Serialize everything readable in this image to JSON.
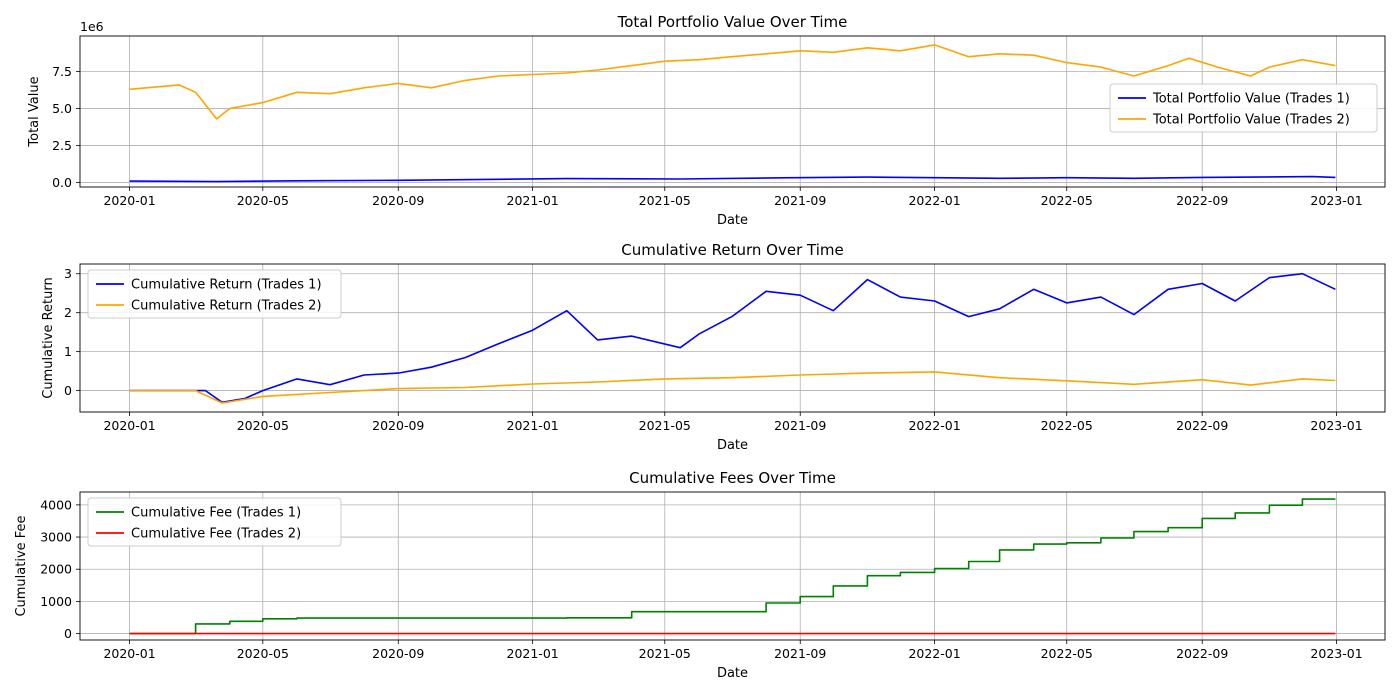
{
  "chart_data": [
    {
      "type": "line",
      "title": "Total Portfolio Value Over Time",
      "xlabel": "Date",
      "ylabel": "Total Value",
      "y_offset_text": "1e6",
      "ylim": [
        -0.3,
        9.9
      ],
      "y_ticks": [
        0,
        2.5,
        5,
        7.5
      ],
      "y_tick_labels": [
        "0.0",
        "2.5",
        "5.0",
        "7.5"
      ],
      "grid": true,
      "legend_position": "center-right",
      "series": [
        {
          "name": "Total Portfolio Value (Trades 1)",
          "color": "#0000ff",
          "points": [
            [
              "2020-01-01",
              0.1
            ],
            [
              "2020-03-20",
              0.07
            ],
            [
              "2020-06-01",
              0.12
            ],
            [
              "2020-09-01",
              0.15
            ],
            [
              "2020-12-01",
              0.22
            ],
            [
              "2021-02-01",
              0.27
            ],
            [
              "2021-05-15",
              0.24
            ],
            [
              "2021-08-15",
              0.32
            ],
            [
              "2021-11-01",
              0.37
            ],
            [
              "2022-01-01",
              0.33
            ],
            [
              "2022-03-01",
              0.29
            ],
            [
              "2022-05-01",
              0.33
            ],
            [
              "2022-07-01",
              0.29
            ],
            [
              "2022-09-01",
              0.35
            ],
            [
              "2022-12-10",
              0.4
            ],
            [
              "2022-12-31",
              0.35
            ]
          ]
        },
        {
          "name": "Total Portfolio Value (Trades 2)",
          "color": "#ffa500",
          "points": [
            [
              "2020-01-01",
              6.3
            ],
            [
              "2020-02-15",
              6.6
            ],
            [
              "2020-03-01",
              6.1
            ],
            [
              "2020-03-20",
              4.3
            ],
            [
              "2020-04-01",
              5.0
            ],
            [
              "2020-05-01",
              5.4
            ],
            [
              "2020-06-01",
              6.1
            ],
            [
              "2020-07-01",
              6.0
            ],
            [
              "2020-08-01",
              6.4
            ],
            [
              "2020-09-01",
              6.7
            ],
            [
              "2020-10-01",
              6.4
            ],
            [
              "2020-11-01",
              6.9
            ],
            [
              "2020-12-01",
              7.2
            ],
            [
              "2021-01-01",
              7.3
            ],
            [
              "2021-02-01",
              7.4
            ],
            [
              "2021-03-01",
              7.6
            ],
            [
              "2021-04-01",
              7.9
            ],
            [
              "2021-05-01",
              8.2
            ],
            [
              "2021-06-01",
              8.3
            ],
            [
              "2021-07-01",
              8.5
            ],
            [
              "2021-08-01",
              8.7
            ],
            [
              "2021-09-01",
              8.9
            ],
            [
              "2021-10-01",
              8.8
            ],
            [
              "2021-11-01",
              9.1
            ],
            [
              "2021-12-01",
              8.9
            ],
            [
              "2022-01-01",
              9.3
            ],
            [
              "2022-02-01",
              8.5
            ],
            [
              "2022-03-01",
              8.7
            ],
            [
              "2022-04-01",
              8.6
            ],
            [
              "2022-05-01",
              8.1
            ],
            [
              "2022-06-01",
              7.8
            ],
            [
              "2022-07-01",
              7.2
            ],
            [
              "2022-08-01",
              7.9
            ],
            [
              "2022-08-20",
              8.4
            ],
            [
              "2022-09-15",
              7.8
            ],
            [
              "2022-10-15",
              7.2
            ],
            [
              "2022-11-01",
              7.8
            ],
            [
              "2022-12-01",
              8.3
            ],
            [
              "2022-12-31",
              7.9
            ]
          ]
        }
      ],
      "x_ticks": [
        "2020-01",
        "2020-05",
        "2020-09",
        "2021-01",
        "2021-05",
        "2021-09",
        "2022-01",
        "2022-05",
        "2022-09",
        "2023-01"
      ]
    },
    {
      "type": "line",
      "title": "Cumulative Return Over Time",
      "xlabel": "Date",
      "ylabel": "Cumulative Return",
      "ylim": [
        -0.55,
        3.25
      ],
      "y_ticks": [
        0,
        1,
        2,
        3
      ],
      "y_tick_labels": [
        "0",
        "1",
        "2",
        "3"
      ],
      "grid": true,
      "legend_position": "upper-left",
      "series": [
        {
          "name": "Cumulative Return (Trades 1)",
          "color": "#0000ff",
          "points": [
            [
              "2020-01-01",
              0.0
            ],
            [
              "2020-03-10",
              0.0
            ],
            [
              "2020-03-25",
              -0.3
            ],
            [
              "2020-04-15",
              -0.2
            ],
            [
              "2020-05-01",
              0.0
            ],
            [
              "2020-06-01",
              0.3
            ],
            [
              "2020-07-01",
              0.15
            ],
            [
              "2020-08-01",
              0.4
            ],
            [
              "2020-09-01",
              0.45
            ],
            [
              "2020-10-01",
              0.6
            ],
            [
              "2020-11-01",
              0.85
            ],
            [
              "2020-12-01",
              1.2
            ],
            [
              "2021-01-01",
              1.55
            ],
            [
              "2021-02-01",
              2.05
            ],
            [
              "2021-03-01",
              1.3
            ],
            [
              "2021-04-01",
              1.4
            ],
            [
              "2021-05-15",
              1.1
            ],
            [
              "2021-06-01",
              1.45
            ],
            [
              "2021-07-01",
              1.9
            ],
            [
              "2021-08-01",
              2.55
            ],
            [
              "2021-09-01",
              2.45
            ],
            [
              "2021-10-01",
              2.05
            ],
            [
              "2021-11-01",
              2.85
            ],
            [
              "2021-12-01",
              2.4
            ],
            [
              "2022-01-01",
              2.3
            ],
            [
              "2022-02-01",
              1.9
            ],
            [
              "2022-03-01",
              2.1
            ],
            [
              "2022-04-01",
              2.6
            ],
            [
              "2022-05-01",
              2.25
            ],
            [
              "2022-06-01",
              2.4
            ],
            [
              "2022-07-01",
              1.95
            ],
            [
              "2022-08-01",
              2.6
            ],
            [
              "2022-09-01",
              2.75
            ],
            [
              "2022-10-01",
              2.3
            ],
            [
              "2022-11-01",
              2.9
            ],
            [
              "2022-12-01",
              3.0
            ],
            [
              "2022-12-31",
              2.6
            ]
          ]
        },
        {
          "name": "Cumulative Return (Trades 2)",
          "color": "#ffa500",
          "points": [
            [
              "2020-01-01",
              0.0
            ],
            [
              "2020-03-01",
              0.0
            ],
            [
              "2020-03-25",
              -0.32
            ],
            [
              "2020-05-01",
              -0.15
            ],
            [
              "2020-07-01",
              -0.05
            ],
            [
              "2020-09-01",
              0.05
            ],
            [
              "2020-11-01",
              0.08
            ],
            [
              "2021-01-01",
              0.17
            ],
            [
              "2021-03-01",
              0.22
            ],
            [
              "2021-05-01",
              0.3
            ],
            [
              "2021-07-01",
              0.33
            ],
            [
              "2021-09-01",
              0.4
            ],
            [
              "2021-11-01",
              0.45
            ],
            [
              "2022-01-01",
              0.48
            ],
            [
              "2022-03-01",
              0.33
            ],
            [
              "2022-05-01",
              0.25
            ],
            [
              "2022-07-01",
              0.16
            ],
            [
              "2022-09-01",
              0.28
            ],
            [
              "2022-10-15",
              0.14
            ],
            [
              "2022-12-01",
              0.3
            ],
            [
              "2022-12-31",
              0.26
            ]
          ]
        }
      ],
      "x_ticks": [
        "2020-01",
        "2020-05",
        "2020-09",
        "2021-01",
        "2021-05",
        "2021-09",
        "2022-01",
        "2022-05",
        "2022-09",
        "2023-01"
      ]
    },
    {
      "type": "line",
      "title": "Cumulative Fees Over Time",
      "xlabel": "Date",
      "ylabel": "Cumulative Fee",
      "ylim": [
        -200,
        4400
      ],
      "y_ticks": [
        0,
        1000,
        2000,
        3000,
        4000
      ],
      "y_tick_labels": [
        "0",
        "1000",
        "2000",
        "3000",
        "4000"
      ],
      "grid": true,
      "legend_position": "upper-left",
      "series": [
        {
          "name": "Cumulative Fee (Trades 1)",
          "color": "#008000",
          "step": true,
          "points": [
            [
              "2020-01-01",
              0
            ],
            [
              "2020-03-01",
              300
            ],
            [
              "2020-04-01",
              380
            ],
            [
              "2020-05-01",
              460
            ],
            [
              "2020-06-01",
              480
            ],
            [
              "2021-02-01",
              490
            ],
            [
              "2021-04-01",
              680
            ],
            [
              "2021-08-01",
              950
            ],
            [
              "2021-09-01",
              1150
            ],
            [
              "2021-10-01",
              1480
            ],
            [
              "2021-11-01",
              1800
            ],
            [
              "2021-12-01",
              1900
            ],
            [
              "2022-01-01",
              2020
            ],
            [
              "2022-02-01",
              2240
            ],
            [
              "2022-03-01",
              2600
            ],
            [
              "2022-04-01",
              2780
            ],
            [
              "2022-05-01",
              2820
            ],
            [
              "2022-06-01",
              2970
            ],
            [
              "2022-07-01",
              3170
            ],
            [
              "2022-08-01",
              3290
            ],
            [
              "2022-09-01",
              3580
            ],
            [
              "2022-10-01",
              3750
            ],
            [
              "2022-11-01",
              3990
            ],
            [
              "2022-12-01",
              4180
            ],
            [
              "2022-12-31",
              4180
            ]
          ]
        },
        {
          "name": "Cumulative Fee (Trades 2)",
          "color": "#ff0000",
          "step": true,
          "points": [
            [
              "2020-01-01",
              0
            ],
            [
              "2022-12-31",
              0
            ]
          ]
        }
      ],
      "x_ticks": [
        "2020-01",
        "2020-05",
        "2020-09",
        "2021-01",
        "2021-05",
        "2021-09",
        "2022-01",
        "2022-05",
        "2022-09",
        "2023-01"
      ]
    }
  ]
}
